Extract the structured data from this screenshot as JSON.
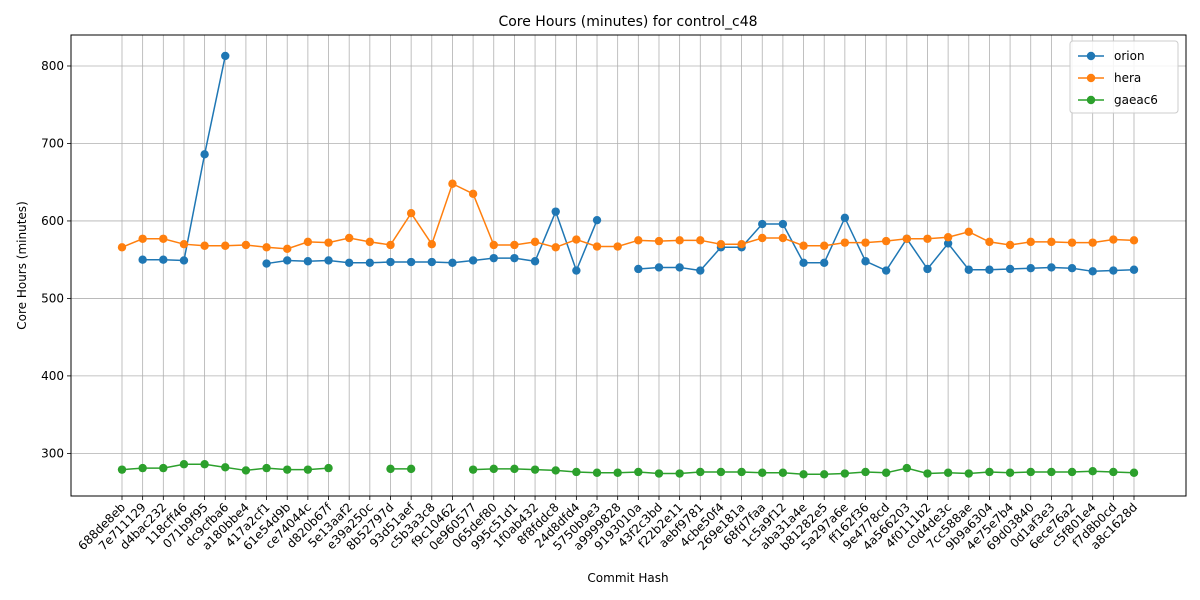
{
  "chart_data": {
    "type": "line",
    "title": "Core Hours (minutes) for control_c48",
    "xlabel": "Commit Hash",
    "ylabel": "Core Hours (minutes)",
    "ylim": [
      245,
      840
    ],
    "yticks": [
      300,
      400,
      500,
      600,
      700,
      800
    ],
    "grid": true,
    "legend_position": "top-right",
    "categories": [
      "688de8eb",
      "7e711129",
      "d4bac232",
      "118cff46",
      "071b9f95",
      "dc9cfba6",
      "a180bbe4",
      "417a2cf1",
      "61e54d9b",
      "ce74044c",
      "d820b67f",
      "5e13aaf2",
      "e39a250c",
      "8b52797d",
      "93d51aef",
      "c5b3a3c8",
      "f9c10462",
      "0e960577",
      "065def80",
      "995c51d1",
      "1f0ab432",
      "8f8fddc8",
      "24d8dfd4",
      "5750b9e3",
      "a9999828",
      "9193010a",
      "43f2c3bd",
      "f22b2e11",
      "aebf9781",
      "4cbe50f4",
      "269e181a",
      "68fd7faa",
      "1c5a9f12",
      "aba31a4e",
      "b81282e5",
      "5a297a6e",
      "ff162f36",
      "9e4778cd",
      "4a566203",
      "4f0111b2",
      "c0d4de3c",
      "7cc588ae",
      "9b9a6304",
      "4e75e7b4",
      "69d03840",
      "0d1af3e3",
      "6ece76a2",
      "c5f801e4",
      "f7d8b0cd",
      "a8c1628d"
    ],
    "series": [
      {
        "name": "orion",
        "color": "#1f77b4",
        "values": [
          null,
          550,
          550,
          549,
          686,
          813,
          null,
          545,
          549,
          548,
          549,
          546,
          546,
          547,
          547,
          547,
          546,
          549,
          552,
          552,
          548,
          612,
          536,
          601,
          null,
          538,
          540,
          540,
          536,
          566,
          566,
          596,
          596,
          546,
          546,
          604,
          548,
          536,
          577,
          538,
          571,
          537,
          537,
          538,
          539,
          540,
          539,
          535,
          536,
          537
        ]
      },
      {
        "name": "hera",
        "color": "#ff7f0e",
        "values": [
          566,
          577,
          577,
          570,
          568,
          568,
          569,
          566,
          564,
          573,
          572,
          578,
          573,
          569,
          610,
          570,
          648,
          635,
          569,
          569,
          573,
          566,
          576,
          567,
          567,
          575,
          574,
          575,
          575,
          570,
          570,
          578,
          578,
          568,
          568,
          572,
          572,
          574,
          577,
          577,
          579,
          586,
          573,
          569,
          573,
          573,
          572,
          572,
          576,
          575
        ]
      },
      {
        "name": "gaeac6",
        "color": "#2ca02c",
        "values": [
          279,
          281,
          281,
          286,
          286,
          282,
          278,
          281,
          279,
          279,
          281,
          null,
          null,
          280,
          280,
          null,
          null,
          279,
          280,
          280,
          279,
          278,
          276,
          275,
          275,
          276,
          274,
          274,
          276,
          276,
          276,
          275,
          275,
          273,
          273,
          274,
          276,
          275,
          281,
          274,
          275,
          274,
          276,
          275,
          276,
          276,
          276,
          277,
          276,
          275
        ]
      }
    ]
  }
}
